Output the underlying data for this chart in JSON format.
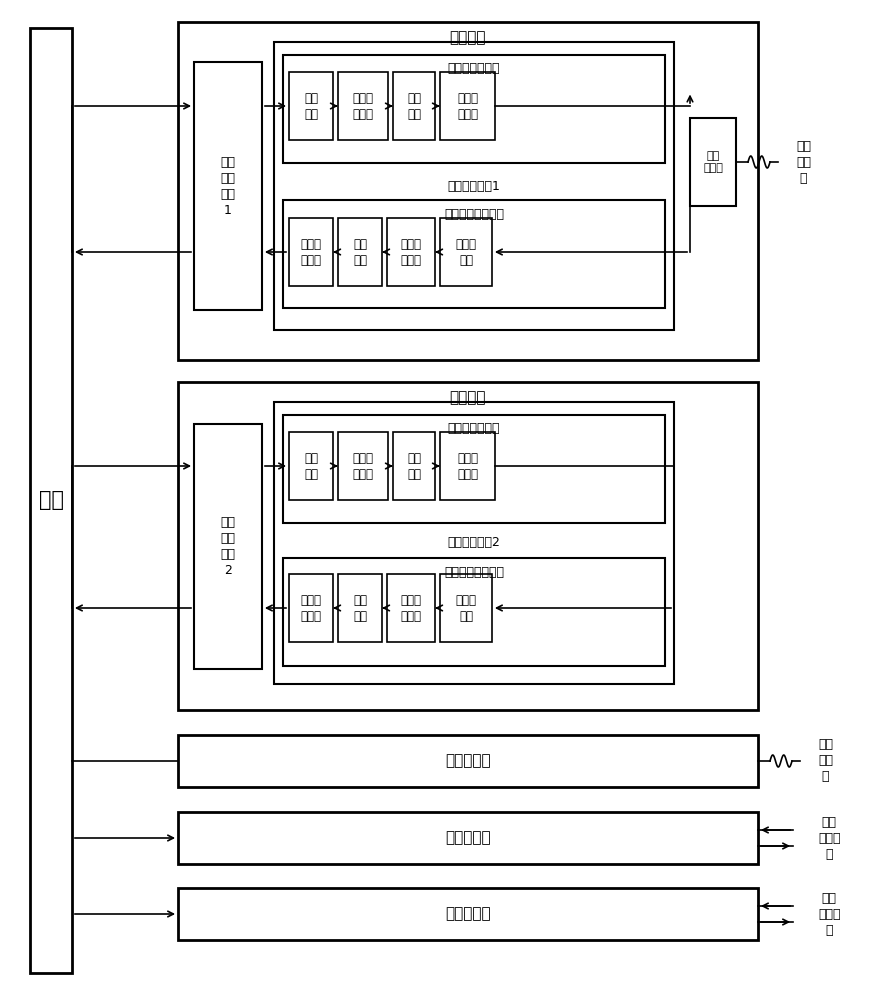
{
  "bg_color": "#ffffff",
  "title_master": "数字主板",
  "title_slave": "数字从板",
  "backplane_label": "背板",
  "compress_label": "多载波压缩模块",
  "decompress_label": "多载波解压缩模块",
  "signal_proc1": "信号处理模块1",
  "signal_proc2": "信号处理模块2",
  "data_acq1": "数据\n采集\n模块\n1",
  "data_acq2": "数据\n采集\n模块\n2",
  "master_slave": "主从\n选择器",
  "optical_ext": "光口扩展板",
  "main_rf": "主射频板组",
  "sub_rf": "从射频板组",
  "ext_remote1": "外部\n远程\n端",
  "ext_remote2": "外部\n远程\n端",
  "ext_rf1": "外部\n射频信\n号",
  "ext_rf2": "外部\n射频信\n号",
  "compress_blocks": [
    "变频\n模块",
    "抽取滤\n波模块",
    "压缩\n模块",
    "增益调\n节模块"
  ],
  "decompress_blocks": [
    "增益调\n节模块",
    "变频\n模块",
    "插值滤\n波模块",
    "解压缩\n模块"
  ]
}
